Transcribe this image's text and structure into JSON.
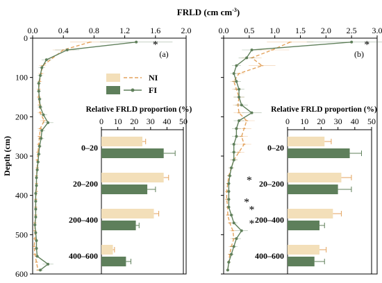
{
  "figure_title": "FRLD (cm cm",
  "figure_title_sup": "-3",
  "figure_title_close": ")",
  "depth_axis_label": "Depth (cm)",
  "colors": {
    "NI": "#e3a25c",
    "FI": "#5f7f5a",
    "NI_bar": "#f3dfb9",
    "FI_bar": "#5e7f5b",
    "sig": "#d7a06a",
    "sig_fi": "#6f8f6a"
  },
  "chart_data": [
    {
      "type": "line",
      "panel_label": "(a)",
      "xlim": [
        0,
        2.0
      ],
      "xticks": [
        "0.0",
        "0.4",
        "0.8",
        "1.2",
        "1.6",
        "2.0"
      ],
      "ylim": [
        0,
        600
      ],
      "yticks": [
        "0",
        "100",
        "200",
        "300",
        "400",
        "500",
        "600"
      ],
      "legend": [
        {
          "name": "NI"
        },
        {
          "name": "FI"
        }
      ],
      "series": [
        {
          "name": "NI",
          "depths": [
            10,
            30,
            70,
            90,
            110,
            130,
            150,
            170,
            190,
            210,
            230,
            250,
            270,
            290,
            310,
            330,
            350,
            370,
            390,
            410,
            430,
            450,
            470,
            490,
            510,
            530,
            550,
            570,
            590
          ],
          "values": [
            0.75,
            0.4,
            0.13,
            0.11,
            0.09,
            0.08,
            0.08,
            0.09,
            0.1,
            0.15,
            0.1,
            0.09,
            0.08,
            0.07,
            0.06,
            0.06,
            0.05,
            0.05,
            0.05,
            0.04,
            0.04,
            0.04,
            0.03,
            0.03,
            0.03,
            0.02,
            0.03,
            0.05,
            0.07
          ]
        },
        {
          "name": "FI",
          "depths": [
            10,
            30,
            55,
            75,
            95,
            115,
            135,
            155,
            175,
            195,
            215,
            235,
            255,
            275,
            295,
            315,
            335,
            355,
            375,
            395,
            415,
            435,
            455,
            475,
            495,
            515,
            535,
            555,
            575,
            590
          ],
          "values": [
            1.35,
            0.45,
            0.18,
            0.12,
            0.1,
            0.08,
            0.08,
            0.09,
            0.1,
            0.14,
            0.2,
            0.12,
            0.11,
            0.09,
            0.08,
            0.07,
            0.06,
            0.05,
            0.05,
            0.04,
            0.04,
            0.04,
            0.04,
            0.03,
            0.04,
            0.05,
            0.05,
            0.06,
            0.2,
            0.1
          ]
        }
      ],
      "annotations": [
        {
          "text": "*",
          "depth": 10,
          "x": 1.6
        }
      ],
      "inset": {
        "type": "bar",
        "title": "Relative FRLD proportion (%)",
        "xlim": [
          0,
          50
        ],
        "xticks": [
          "0",
          "10",
          "20",
          "30",
          "40",
          "50"
        ],
        "categories": [
          "0–20",
          "20–200",
          "200–400",
          "400–600"
        ],
        "series": [
          {
            "name": "NI",
            "values": [
              25,
              38,
              32,
              7
            ],
            "errors": [
              2,
              3,
              3,
              1
            ]
          },
          {
            "name": "FI",
            "values": [
              38,
              28,
              21,
              15
            ],
            "errors": [
              7,
              5,
              2,
              3
            ]
          }
        ]
      }
    },
    {
      "type": "line",
      "panel_label": "(b)",
      "xlim": [
        0,
        3.0
      ],
      "xticks": [
        "0.0",
        "0.5",
        "1.0",
        "1.5",
        "2.0",
        "2.5",
        "3.0"
      ],
      "ylim": [
        0,
        600
      ],
      "series": [
        {
          "name": "NI",
          "depths": [
            10,
            30,
            50,
            70,
            90,
            110,
            130,
            150,
            170,
            190,
            210,
            230,
            250,
            270,
            290,
            310,
            330,
            350,
            370,
            390,
            410,
            430,
            450,
            470,
            490,
            510,
            530,
            550,
            570,
            590
          ],
          "values": [
            1.3,
            0.95,
            0.55,
            0.75,
            0.3,
            0.2,
            0.25,
            0.3,
            0.28,
            0.3,
            0.45,
            0.4,
            0.35,
            0.4,
            0.3,
            0.2,
            0.15,
            0.1,
            0.08,
            0.06,
            0.06,
            0.08,
            0.08,
            0.12,
            0.18,
            0.2,
            0.15,
            0.12,
            0.1,
            0.08
          ]
        },
        {
          "name": "FI",
          "depths": [
            10,
            30,
            50,
            70,
            90,
            110,
            130,
            150,
            170,
            190,
            210,
            230,
            250,
            270,
            290,
            310,
            330,
            350,
            370,
            390,
            410,
            430,
            450,
            470,
            490,
            510,
            530,
            550,
            570,
            590
          ],
          "values": [
            2.5,
            0.55,
            0.45,
            0.25,
            0.2,
            0.25,
            0.3,
            0.3,
            0.35,
            0.55,
            0.3,
            0.25,
            0.25,
            0.2,
            0.2,
            0.2,
            0.15,
            0.12,
            0.1,
            0.1,
            0.1,
            0.1,
            0.15,
            0.2,
            0.35,
            0.25,
            0.2,
            0.15,
            0.1,
            0.08
          ]
        }
      ],
      "annotations": [
        {
          "text": "*",
          "depth": 10,
          "x": 2.8
        },
        {
          "text": "*",
          "depth": 355,
          "x": 0.5
        },
        {
          "text": "*",
          "depth": 410,
          "x": 0.45
        },
        {
          "text": "*",
          "depth": 430,
          "x": 0.55
        },
        {
          "text": "*",
          "depth": 465,
          "x": 0.55
        }
      ],
      "inset": {
        "type": "bar",
        "title": "Relative FRLD proportion (%)",
        "xlim": [
          0,
          50
        ],
        "xticks": [
          "0",
          "10",
          "20",
          "30",
          "40",
          "50"
        ],
        "categories": [
          "0–20",
          "20–200",
          "200–400",
          "400–600"
        ],
        "series": [
          {
            "name": "NI",
            "values": [
              22,
              32,
              27,
              19
            ],
            "errors": [
              4,
              6,
              5,
              4
            ]
          },
          {
            "name": "FI",
            "values": [
              37,
              30,
              19,
              16
            ],
            "errors": [
              7,
              8,
              3,
              6
            ]
          }
        ]
      }
    }
  ]
}
